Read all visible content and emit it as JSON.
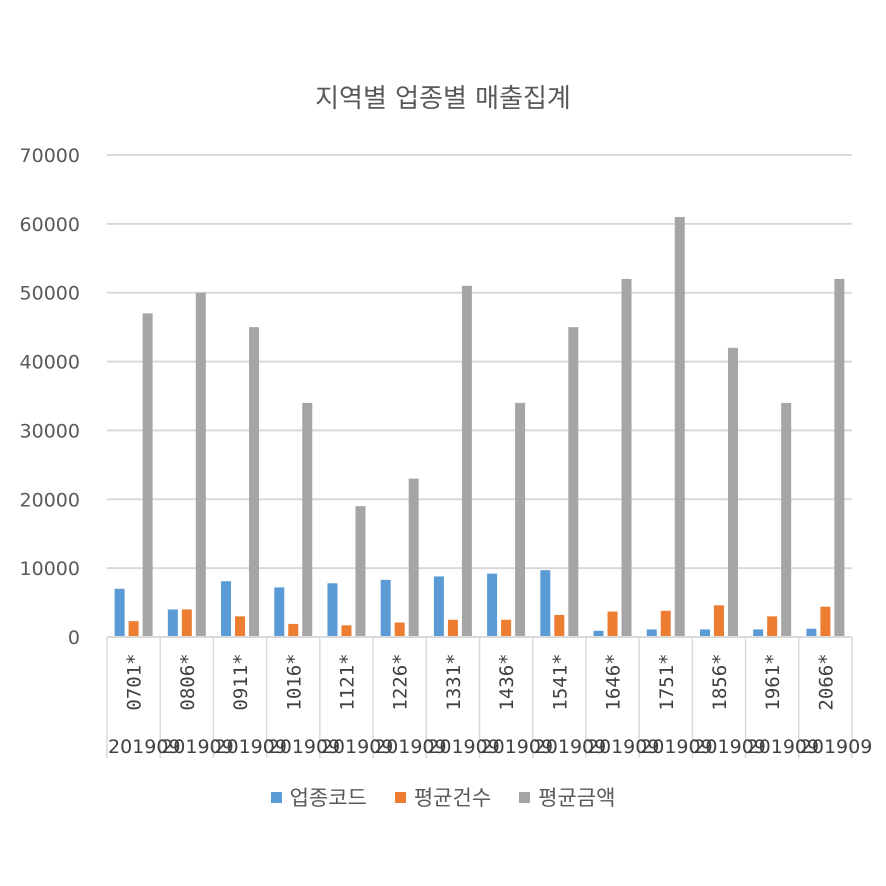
{
  "chart_data": {
    "type": "bar",
    "title": "지역별 업종별 매출집계",
    "xlabel": "",
    "ylabel": "",
    "ylim": [
      0,
      70000
    ],
    "yticks": [
      "0",
      "10000",
      "20000",
      "30000",
      "40000",
      "50000",
      "60000",
      "70000"
    ],
    "categories": [
      "0701*",
      "0806*",
      "0911*",
      "1016*",
      "1121*",
      "1226*",
      "1331*",
      "1436*",
      "1541*",
      "1646*",
      "1751*",
      "1856*",
      "1961*",
      "2066*"
    ],
    "category_group_label": "201909",
    "series": [
      {
        "name": "업종코드",
        "color": "#5b9bd5",
        "values": [
          7000,
          4000,
          8100,
          7200,
          7800,
          8300,
          8800,
          9200,
          9700,
          900,
          1100,
          1100,
          1100,
          1200
        ]
      },
      {
        "name": "평균건수",
        "color": "#ed7d31",
        "values": [
          2300,
          4000,
          3000,
          1900,
          1700,
          2100,
          2500,
          2500,
          3200,
          3700,
          3800,
          4600,
          3000,
          4400
        ]
      },
      {
        "name": "평균금액",
        "color": "#a5a5a5",
        "values": [
          47000,
          50000,
          45000,
          34000,
          19000,
          23000,
          51000,
          34000,
          45000,
          52000,
          61000,
          42000,
          34000,
          52000
        ]
      }
    ],
    "grid": true,
    "legend_position": "bottom"
  }
}
